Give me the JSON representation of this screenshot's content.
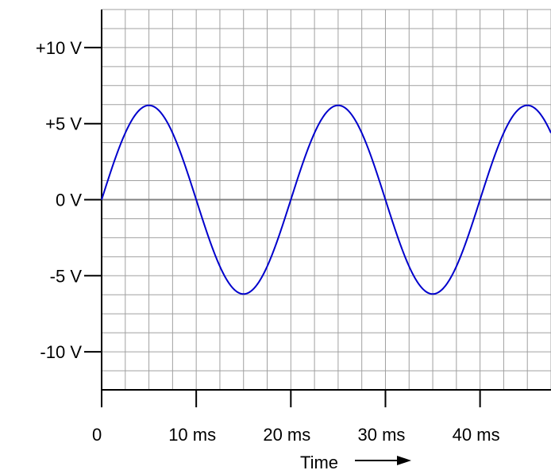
{
  "chart_data": {
    "type": "line",
    "xlabel": "Time",
    "x_unit": "ms",
    "y_unit": "V",
    "xlim": [
      0,
      47.5
    ],
    "ylim": [
      -12.5,
      12.5
    ],
    "grid": true,
    "x_ticks": [
      {
        "value": 0,
        "label": "0"
      },
      {
        "value": 10,
        "label": "10 ms"
      },
      {
        "value": 20,
        "label": "20 ms"
      },
      {
        "value": 30,
        "label": "30 ms"
      },
      {
        "value": 40,
        "label": "40 ms"
      }
    ],
    "y_ticks": [
      {
        "value": 10,
        "label": "+10 V"
      },
      {
        "value": 5,
        "label": "+5 V"
      },
      {
        "value": 0,
        "label": "0 V"
      },
      {
        "value": -5,
        "label": "-5 V"
      },
      {
        "value": -10,
        "label": "-10 V"
      }
    ],
    "series": [
      {
        "function": "sine",
        "amplitude": 6.2,
        "period": 20,
        "phase": 0,
        "color": "#0000cc"
      }
    ],
    "colors": {
      "grid": "#a0a0a0",
      "axis": "#000000",
      "zero_line": "#808080"
    }
  }
}
